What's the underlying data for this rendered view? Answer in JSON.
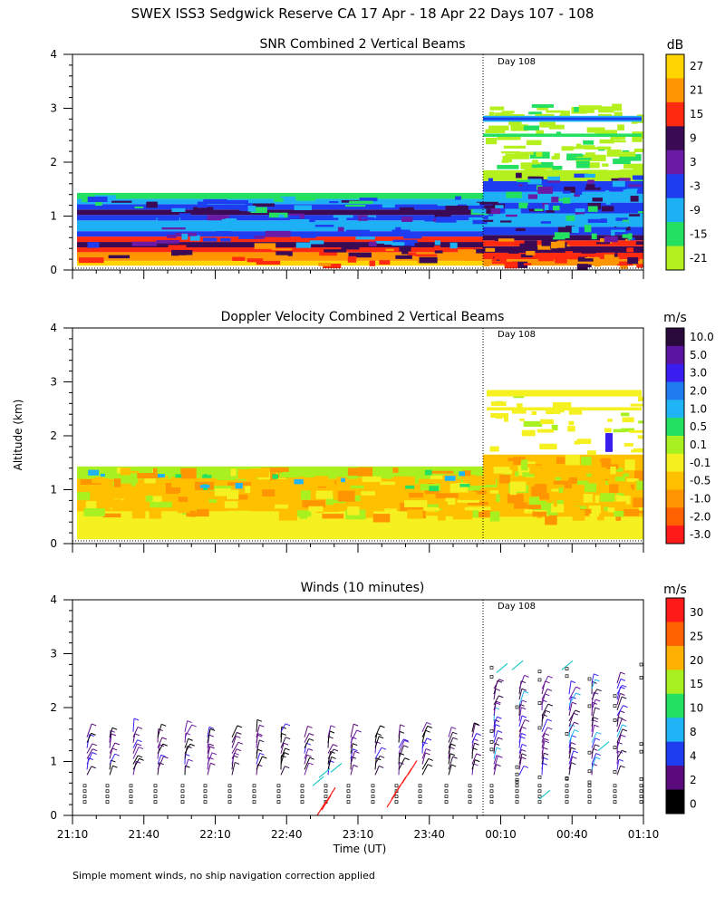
{
  "page_title": "SWEX ISS3 Sedgwick Reserve CA  17 Apr - 18 Apr 22 Days 107 - 108",
  "ylabel": "Altitude (km)",
  "xlabel": "Time (UT)",
  "footnote": "Simple moment winds, no ship navigation correction applied",
  "colors": {
    "axis": "#000000",
    "background": "#ffffff"
  },
  "chart_data": [
    {
      "type": "heatmap",
      "title": "SNR Combined 2 Vertical Beams",
      "units": "dB",
      "day_marker": "Day 108",
      "day_marker_time": "23:58",
      "yticks": [
        "0",
        "1",
        "2",
        "3",
        "4"
      ],
      "ylim": [
        0,
        4
      ],
      "colorbar": {
        "labels": [
          "27",
          "21",
          "15",
          "9",
          "3",
          "-3",
          "-9",
          "-15",
          "-21"
        ],
        "colors": [
          "#ffd400",
          "#ff9500",
          "#ff2a10",
          "#3a0a55",
          "#6a1aa5",
          "#1e3cf0",
          "#1eb0f5",
          "#24e060",
          "#b4f01e"
        ]
      },
      "layers_by_altitude": [
        {
          "range_km": [
            0.1,
            0.3
          ],
          "snr_dB": 21
        },
        {
          "range_km": [
            0.3,
            0.5
          ],
          "snr_dB": 15
        },
        {
          "range_km": [
            0.5,
            0.7
          ],
          "snr_dB": 9
        },
        {
          "range_km": [
            0.7,
            1.0
          ],
          "snr_dB": -3
        },
        {
          "range_km": [
            1.0,
            1.2
          ],
          "snr_dB": 3
        },
        {
          "range_km": [
            1.2,
            1.4
          ],
          "snr_dB": -9
        }
      ]
    },
    {
      "type": "heatmap",
      "title": "Doppler Velocity Combined 2 Vertical Beams",
      "units": "m/s",
      "day_marker": "Day 108",
      "day_marker_time": "23:58",
      "yticks": [
        "0",
        "1",
        "2",
        "3",
        "4"
      ],
      "ylim": [
        0,
        4
      ],
      "colorbar": {
        "labels": [
          "10.0",
          "5.0",
          "3.0",
          "2.0",
          "1.0",
          "0.5",
          "0.1",
          "-0.1",
          "-0.5",
          "-1.0",
          "-2.0",
          "-3.0"
        ],
        "colors": [
          "#2a0a3a",
          "#5a14a0",
          "#3a1ef0",
          "#1e7cf0",
          "#1eb4f5",
          "#24e060",
          "#a8f020",
          "#f5f020",
          "#ffc000",
          "#ff9500",
          "#ff6000",
          "#ff1a1a"
        ]
      }
    },
    {
      "type": "scatter",
      "title": "Winds (10 minutes)",
      "units": "m/s",
      "day_marker": "Day 108",
      "day_marker_time": "23:58",
      "yticks": [
        "0",
        "1",
        "2",
        "3",
        "4"
      ],
      "ylim": [
        0,
        4
      ],
      "colorbar": {
        "labels": [
          "30",
          "25",
          "20",
          "15",
          "10",
          "8",
          "4",
          "2",
          "0"
        ],
        "colors": [
          "#ff1a1a",
          "#ff6000",
          "#ffb000",
          "#a8f020",
          "#24e060",
          "#1eb4f5",
          "#1e3cf0",
          "#5a0a7a",
          "#000000"
        ]
      },
      "xticks": [
        "21:10",
        "21:40",
        "22:10",
        "22:40",
        "23:10",
        "23:40",
        "00:10",
        "00:40",
        "01:10"
      ]
    }
  ]
}
